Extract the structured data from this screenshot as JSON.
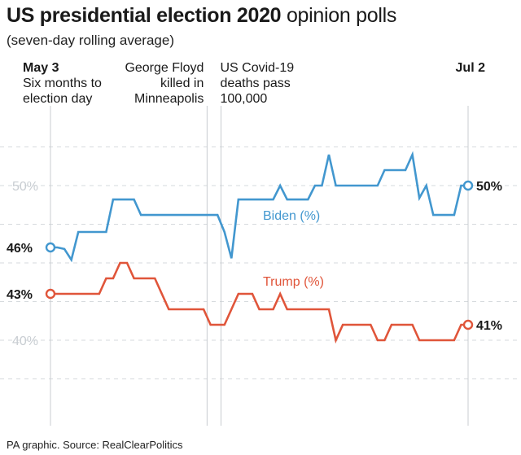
{
  "header": {
    "title_bold": "US presidential election 2020",
    "title_rest": "opinion polls",
    "subtitle": "(seven-day rolling average)"
  },
  "footer": {
    "source": "PA graphic. Source: RealClearPolitics"
  },
  "colors": {
    "biden": "#4297cf",
    "trump": "#e0553a",
    "grid": "#d6dadd",
    "event_line": "#c8ccd0"
  },
  "chart_data": {
    "type": "line",
    "title": "US presidential election 2020 opinion polls",
    "subtitle": "(seven-day rolling average)",
    "xlabel": "",
    "ylabel": "",
    "x_start": "May 3",
    "x_end": "Jul 2",
    "x": [
      0,
      1,
      2,
      3,
      4,
      5,
      6,
      7,
      8,
      9,
      10,
      11,
      12,
      13,
      14,
      15,
      16,
      17,
      18,
      19,
      20,
      21,
      22,
      23,
      24,
      25,
      26,
      27,
      28,
      29,
      30,
      31,
      32,
      33,
      34,
      35,
      36,
      37,
      38,
      39,
      40,
      41,
      42,
      43,
      44,
      45,
      46,
      47,
      48,
      49,
      50,
      51,
      52,
      53,
      54,
      55,
      56,
      57,
      58,
      59,
      60
    ],
    "ylim": [
      37.5,
      53.5
    ],
    "yticks": [
      {
        "value": 50,
        "label": "50%"
      },
      {
        "value": 40,
        "label": "40%"
      }
    ],
    "grid": true,
    "series": [
      {
        "name": "Biden (%)",
        "color": "#4297cf",
        "start_label": "46%",
        "end_label": "50%",
        "values": [
          46,
          46,
          45.9,
          45.2,
          47,
          47,
          47,
          47,
          47,
          49.1,
          49.1,
          49.1,
          49.1,
          48.1,
          48.1,
          48.1,
          48.1,
          48.1,
          48.1,
          48.1,
          48.1,
          48.1,
          48.1,
          48.1,
          48.1,
          47,
          45.3,
          49.1,
          49.1,
          49.1,
          49.1,
          49.1,
          49.1,
          50,
          49.1,
          49.1,
          49.1,
          49.1,
          50,
          50,
          52,
          50,
          50,
          50,
          50,
          50,
          50,
          50,
          51,
          51,
          51,
          51,
          52,
          49.2,
          50,
          48.1,
          48.1,
          48.1,
          48.1,
          50,
          50
        ]
      },
      {
        "name": "Trump (%)",
        "color": "#e0553a",
        "start_label": "43%",
        "end_label": "41%",
        "values": [
          43,
          43,
          43,
          43,
          43,
          43,
          43,
          43,
          44,
          44,
          45,
          45,
          44,
          44,
          44,
          44,
          43,
          42,
          42,
          42,
          42,
          42,
          42,
          41,
          41,
          41,
          42,
          43,
          43,
          43,
          42,
          42,
          42,
          43,
          42,
          42,
          42,
          42,
          42,
          42,
          42,
          40,
          41,
          41,
          41,
          41,
          41,
          40,
          40,
          41,
          41,
          41,
          41,
          40,
          40,
          40,
          40,
          40,
          40,
          41,
          41
        ]
      }
    ],
    "events": [
      {
        "x": 0,
        "date": "May 3",
        "label_lines": [
          "Six months to",
          "election day"
        ]
      },
      {
        "x": 22.5,
        "label_lines": [
          "George Floyd",
          "killed in",
          "Minneapolis"
        ]
      },
      {
        "x": 24.5,
        "label_lines": [
          "US Covid-19",
          "deaths pass",
          "100,000"
        ]
      },
      {
        "x": 60,
        "date": "Jul 2",
        "label_lines": []
      }
    ]
  }
}
